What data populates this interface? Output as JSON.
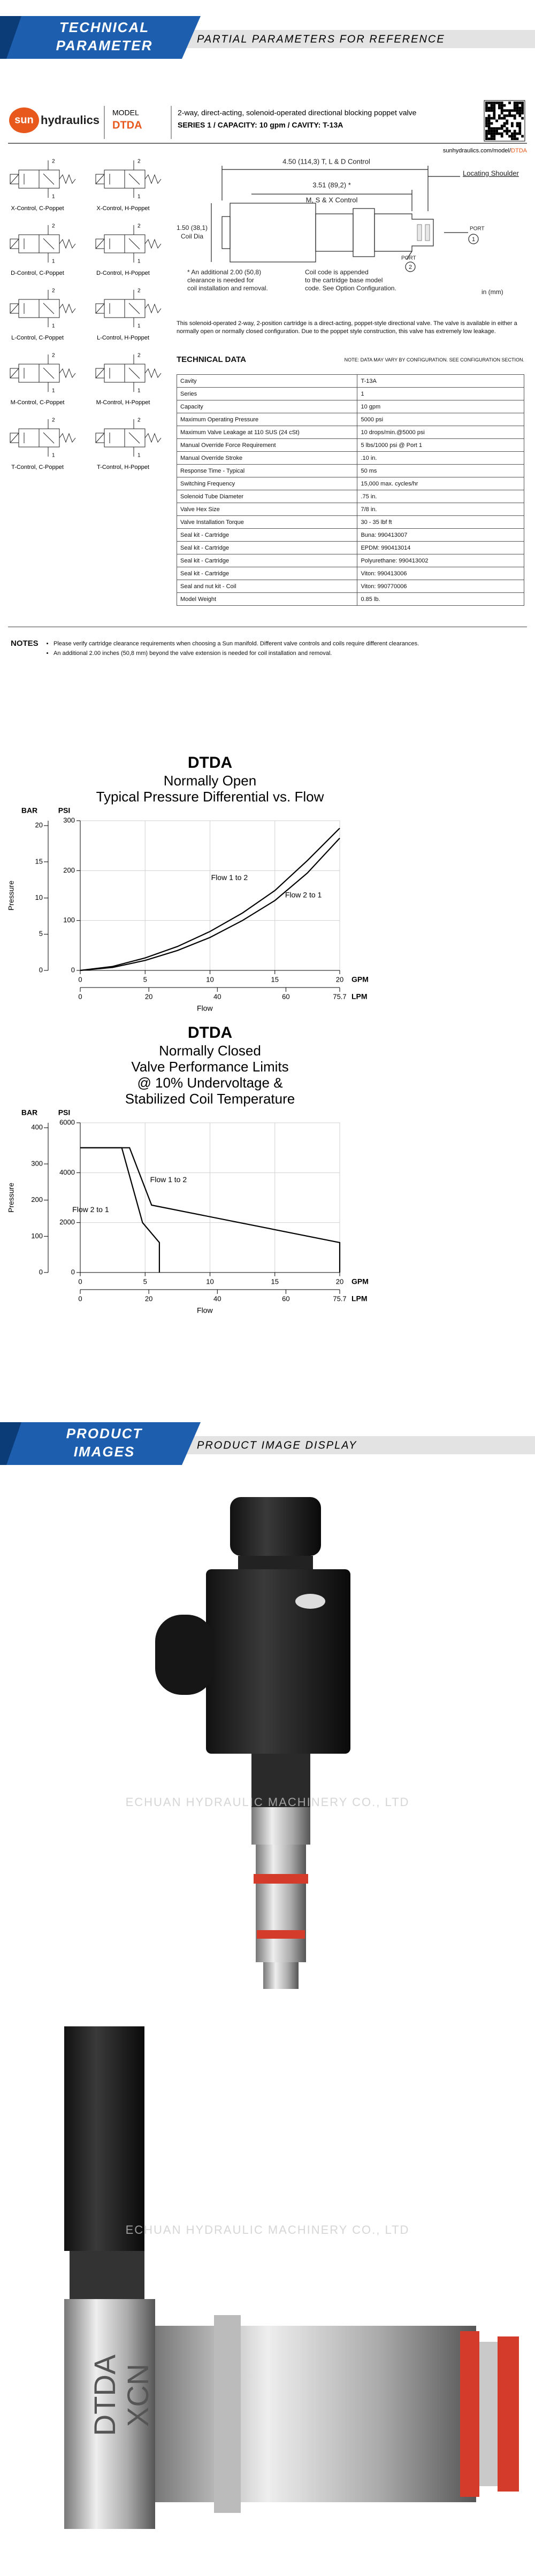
{
  "header": {
    "title_lines": [
      "TECHNICAL",
      "PARAMETER"
    ],
    "subtitle": "PARTIAL PARAMETERS FOR REFERENCE"
  },
  "datasheet": {
    "brand_mark": "sun",
    "brand_name": "hydraulics",
    "model_label": "MODEL",
    "model": "DTDA",
    "product_title": "2-way, direct-acting, solenoid-operated directional blocking poppet valve",
    "series_line": "SERIES 1 / CAPACITY: 10 gpm / CAVITY: T-13A",
    "url": "sunhydraulics.com/model/",
    "url_model": "DTDA",
    "symbols": [
      {
        "label": "X-Control, C-Poppet",
        "port_top": "2",
        "port_bottom": "1"
      },
      {
        "label": "X-Control, H-Poppet",
        "port_top": "2",
        "port_bottom": "1"
      },
      {
        "label": "D-Control, C-Poppet",
        "port_top": "2",
        "port_bottom": "1"
      },
      {
        "label": "D-Control, H-Poppet",
        "port_top": "2",
        "port_bottom": "1"
      },
      {
        "label": "L-Control, C-Poppet",
        "port_top": "2",
        "port_bottom": "1"
      },
      {
        "label": "L-Control, H-Poppet",
        "port_top": "2",
        "port_bottom": "1"
      },
      {
        "label": "M-Control, C-Poppet",
        "port_top": "2",
        "port_bottom": "1"
      },
      {
        "label": "M-Control, H-Poppet",
        "port_top": "2",
        "port_bottom": "1"
      },
      {
        "label": "T-Control, C-Poppet",
        "port_top": "2",
        "port_bottom": "1"
      },
      {
        "label": "T-Control, H-Poppet",
        "port_top": "2",
        "port_bottom": "1"
      }
    ],
    "drawing": {
      "overall": "4.50 (114,3) T, L & D Control",
      "short": "3.51 (89,2) *",
      "short_note": "M, S & X Control",
      "shoulder": "Locating Shoulder",
      "coil_dia": "1.50 (38,1)",
      "coil_dia_label": "Coil Dia",
      "port_label": "PORT",
      "port_1": "1",
      "port_2": "2",
      "clearance_note": [
        "* An additional 2.00 (50,8)",
        "clearance is needed for",
        "coil installation and removal."
      ],
      "coil_note": [
        "Coil code is appended",
        "to the cartridge base model",
        "code. See Option Configuration."
      ],
      "units": "in (mm)"
    },
    "description": "This solenoid-operated 2-way, 2-position cartridge is a direct-acting, poppet-style directional valve. The valve is available in either a normally open or normally closed configuration. Due to the poppet style construction, this valve has extremely low leakage.",
    "technical_data_title": "TECHNICAL DATA",
    "technical_data_note": "NOTE: DATA MAY VARY BY CONFIGURATION. SEE CONFIGURATION SECTION.",
    "table": {
      "rows": [
        [
          "Cavity",
          "T-13A"
        ],
        [
          "Series",
          "1"
        ],
        [
          "Capacity",
          "10 gpm"
        ],
        [
          "Maximum Operating Pressure",
          "5000 psi"
        ],
        [
          "Maximum Valve Leakage at 110 SUS (24 cSt)",
          "10 drops/min.@5000 psi"
        ],
        [
          "Manual Override Force Requirement",
          "5 lbs/1000 psi @ Port 1"
        ],
        [
          "Manual Override Stroke",
          ".10 in."
        ],
        [
          "Response Time - Typical",
          "50 ms"
        ],
        [
          "Switching Frequency",
          "15,000 max. cycles/hr"
        ],
        [
          "Solenoid Tube Diameter",
          ".75 in."
        ],
        [
          "Valve Hex Size",
          "7/8 in."
        ],
        [
          "Valve Installation Torque",
          "30 - 35 lbf ft"
        ],
        [
          "Seal kit - Cartridge",
          "Buna: 990413007"
        ],
        [
          "Seal kit - Cartridge",
          "EPDM: 990413014"
        ],
        [
          "Seal kit - Cartridge",
          "Polyurethane: 990413002"
        ],
        [
          "Seal kit - Cartridge",
          "Viton: 990413006"
        ],
        [
          "Seal and nut kit - Coil",
          "Viton: 990770006"
        ],
        [
          "Model Weight",
          "0.85 lb."
        ]
      ]
    },
    "notes_title": "NOTES",
    "notes": [
      "Please verify cartridge clearance requirements when choosing a Sun manifold. Different valve controls and coils require different clearances.",
      "An additional 2.00 inches (50,8 mm) beyond the valve extension is needed for coil installation and removal."
    ]
  },
  "chart_data": [
    {
      "type": "line",
      "title": "DTDA",
      "subtitle": [
        "Normally Open",
        "Typical Pressure Differential vs. Flow"
      ],
      "xlabel": "Flow",
      "ylabel": "Pressure",
      "x_unit": "GPM",
      "x2_unit": "LPM",
      "y_unit": "PSI",
      "y2_unit": "BAR",
      "xlim": [
        0,
        20
      ],
      "xticks": [
        0,
        5,
        10,
        15,
        20
      ],
      "x2lim": [
        0,
        75.7
      ],
      "x2ticks": [
        0,
        20,
        40,
        60,
        75.7
      ],
      "ylim": [
        0,
        300
      ],
      "yticks": [
        0,
        100,
        200,
        300
      ],
      "y2lim": [
        0,
        20.68
      ],
      "y2ticks": [
        0,
        5,
        10,
        15,
        20
      ],
      "grid": true,
      "series": [
        {
          "name": "Flow 1 to 2",
          "color": "#000000",
          "x": [
            0,
            2.5,
            5,
            7.5,
            10,
            12.5,
            15,
            17.5,
            20
          ],
          "values": [
            0,
            8,
            25,
            48,
            78,
            115,
            160,
            220,
            285
          ]
        },
        {
          "name": "Flow 2 to 1",
          "color": "#000000",
          "x": [
            0,
            2.5,
            5,
            7.5,
            10,
            12.5,
            15,
            17.5,
            20
          ],
          "values": [
            0,
            6,
            20,
            40,
            66,
            100,
            140,
            195,
            265
          ]
        }
      ]
    },
    {
      "type": "line",
      "title": "DTDA",
      "subtitle": [
        "Normally Closed",
        "Valve Performance Limits",
        "@ 10% Undervoltage &",
        "Stabilized Coil Temperature"
      ],
      "xlabel": "Flow",
      "ylabel": "Pressure",
      "x_unit": "GPM",
      "x2_unit": "LPM",
      "y_unit": "PSI",
      "y2_unit": "BAR",
      "xlim": [
        0,
        20
      ],
      "xticks": [
        0,
        5,
        10,
        15,
        20
      ],
      "x2lim": [
        0,
        75.7
      ],
      "x2ticks": [
        0,
        20,
        40,
        60,
        75.7
      ],
      "ylim": [
        0,
        6000
      ],
      "yticks": [
        0,
        2000,
        4000,
        6000
      ],
      "y2lim": [
        0,
        413.7
      ],
      "y2ticks": [
        0,
        100,
        200,
        300,
        400
      ],
      "grid": true,
      "series": [
        {
          "name": "Flow 1 to 2",
          "color": "#000000",
          "x": [
            0,
            3.8,
            5.5,
            20,
            20
          ],
          "values": [
            5000,
            5000,
            2700,
            1200,
            0
          ]
        },
        {
          "name": "Flow 2 to 1",
          "color": "#000000",
          "x": [
            0,
            3.2,
            4.8,
            6.1,
            6.1
          ],
          "values": [
            5000,
            5000,
            2000,
            1200,
            0
          ]
        }
      ]
    }
  ],
  "images_header": {
    "title_lines": [
      "PRODUCT",
      "IMAGES"
    ],
    "subtitle": "PRODUCT IMAGE DISPLAY"
  },
  "images": {
    "watermark": "ECHUAN HYDRAULIC MACHINERY CO., LTD",
    "part_marking": [
      "DTDA",
      "XCN"
    ]
  }
}
